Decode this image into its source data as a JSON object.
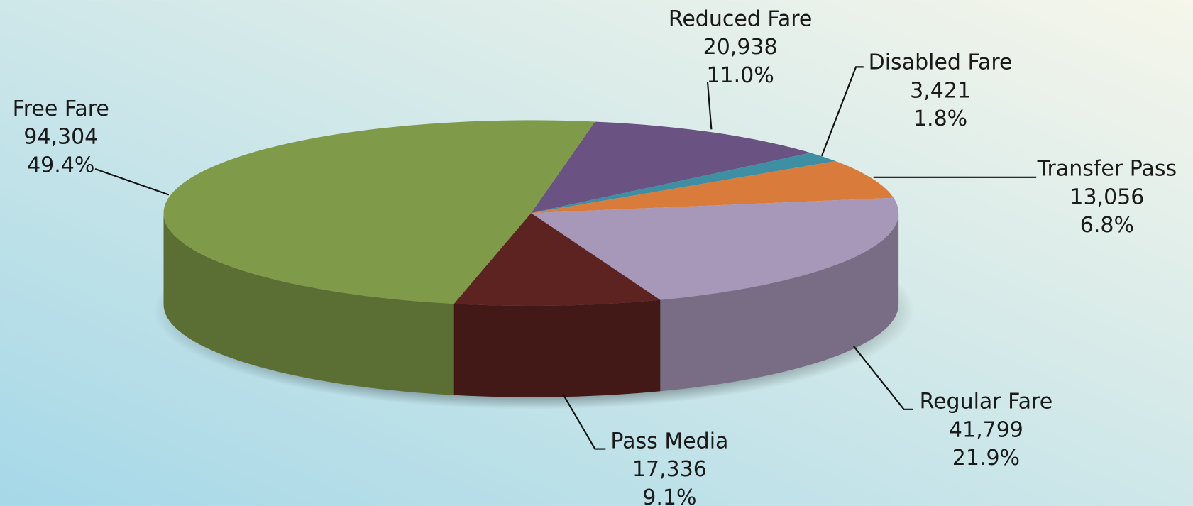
{
  "chart_data": {
    "type": "pie",
    "categories": [
      "Reduced Fare",
      "Disabled Fare",
      "Transfer Pass",
      "Regular Fare",
      "Pass Media",
      "Free Fare"
    ],
    "values": [
      20938,
      3421,
      13056,
      41799,
      17336,
      94304
    ],
    "value_labels": [
      "20,938",
      "3,421",
      "13,056",
      "41,799",
      "17,336",
      "94,304"
    ],
    "percent_labels": [
      "11.0%",
      "1.8%",
      "6.8%",
      "21.9%",
      "9.1%",
      "49.4%"
    ],
    "colors": [
      "#6a5282",
      "#3e8fa3",
      "#d97c3b",
      "#a797b8",
      "#5c2320",
      "#7f9a48"
    ]
  }
}
